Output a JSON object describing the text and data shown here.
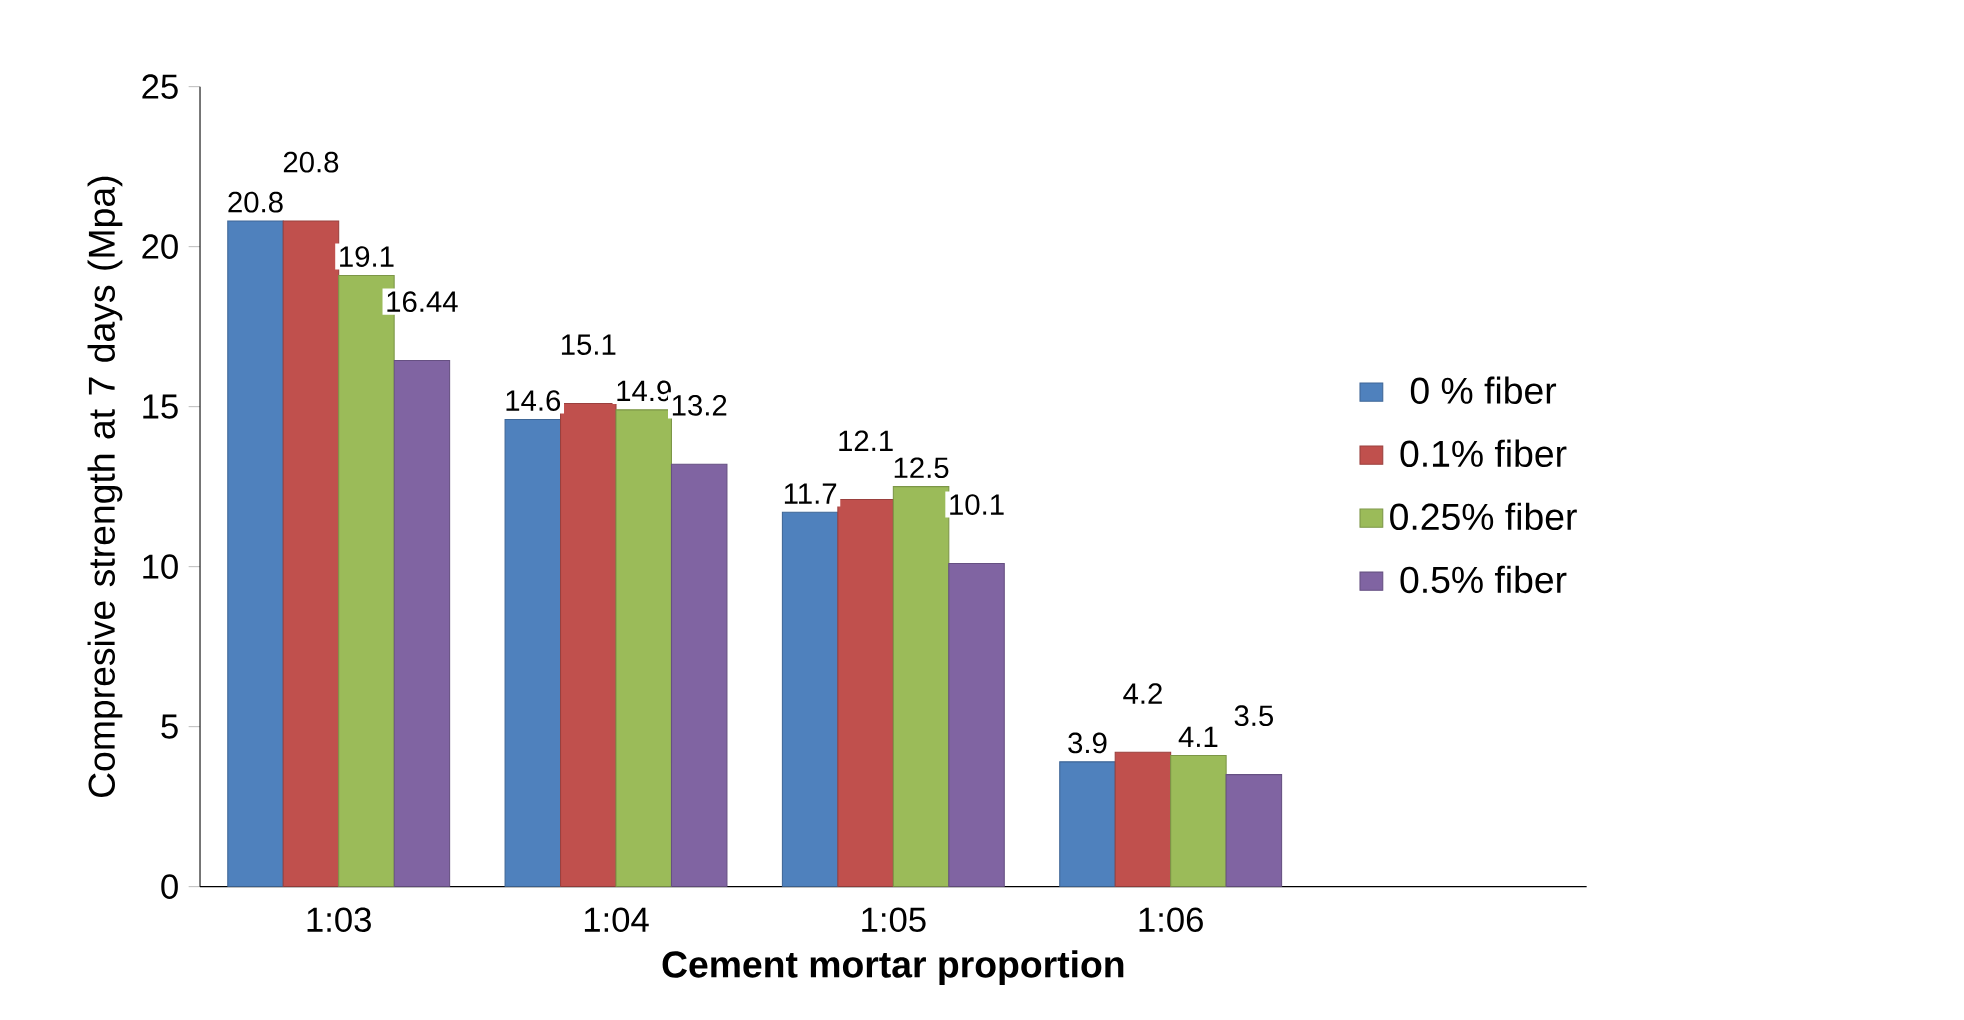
{
  "chart_data": {
    "type": "bar",
    "xlabel": "Cement mortar proportion",
    "ylabel": "Compresive strength at 7 days (Mpa)",
    "categories": [
      "1:03",
      "1:04",
      "1:05",
      "1:06",
      null
    ],
    "series": [
      {
        "name": "0 % fiber",
        "color": "#4f81bd",
        "values": [
          20.8,
          14.6,
          11.7,
          3.9,
          null
        ]
      },
      {
        "name": "0.1% fiber",
        "color": "#c0504d",
        "values": [
          20.8,
          15.1,
          12.1,
          4.2,
          null
        ]
      },
      {
        "name": "0.25% fiber",
        "color": "#9bbb59",
        "values": [
          19.1,
          14.9,
          12.5,
          4.1,
          null
        ]
      },
      {
        "name": "0.5% fiber",
        "color": "#8064a2",
        "values": [
          16.44,
          13.2,
          10.1,
          3.5,
          null
        ]
      }
    ],
    "ylim": [
      0,
      25
    ],
    "yticks": [
      0,
      5,
      10,
      15,
      20,
      25
    ],
    "grid": false,
    "legend": "right",
    "data_labels": true
  }
}
